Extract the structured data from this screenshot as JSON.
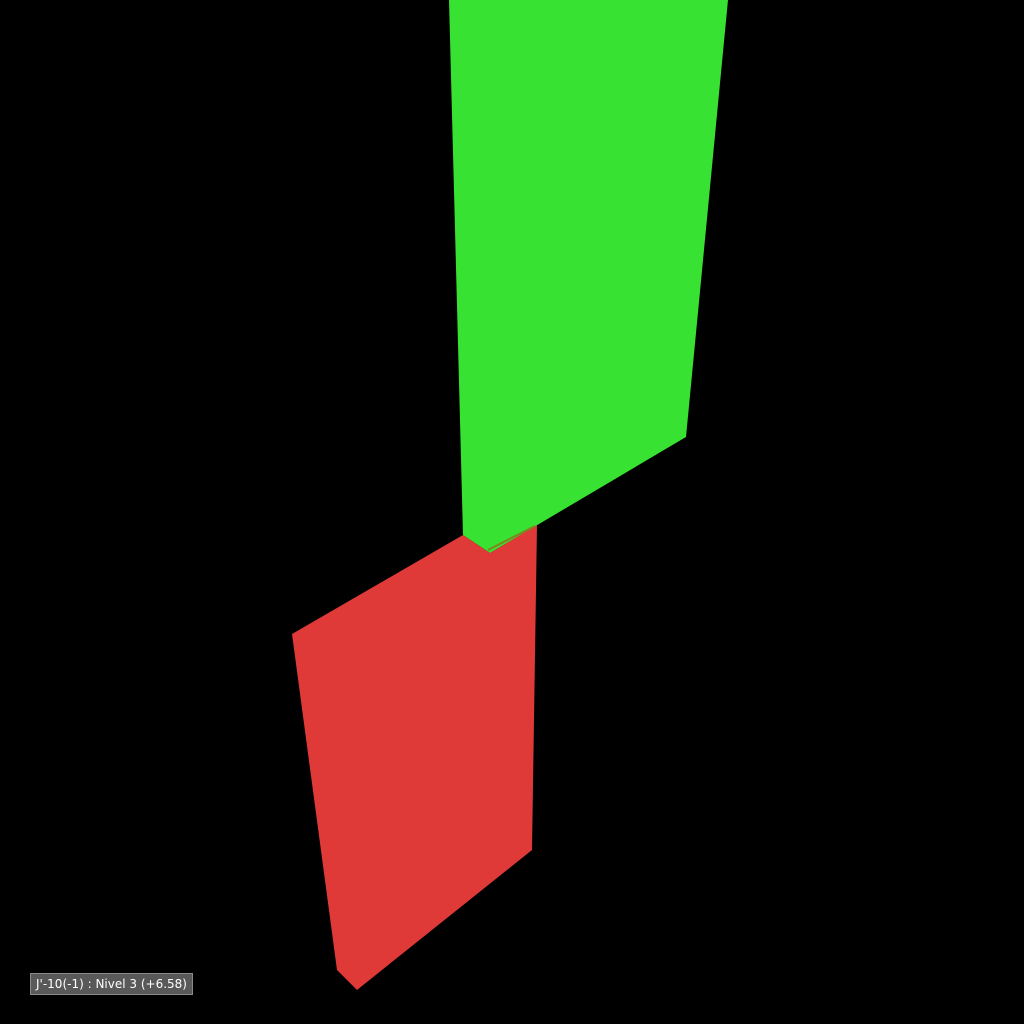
{
  "viewport": {
    "background": "#000000"
  },
  "scene": {
    "elements": [
      {
        "name": "green-wall-panel",
        "color": "#38e232"
      },
      {
        "name": "red-wall-panel",
        "color": "#df3a38"
      },
      {
        "name": "joint-edge",
        "color": "#7a8a1e"
      }
    ]
  },
  "status": {
    "element_label": "J'-10(-1) : Nivel 3 (+6.58)"
  }
}
